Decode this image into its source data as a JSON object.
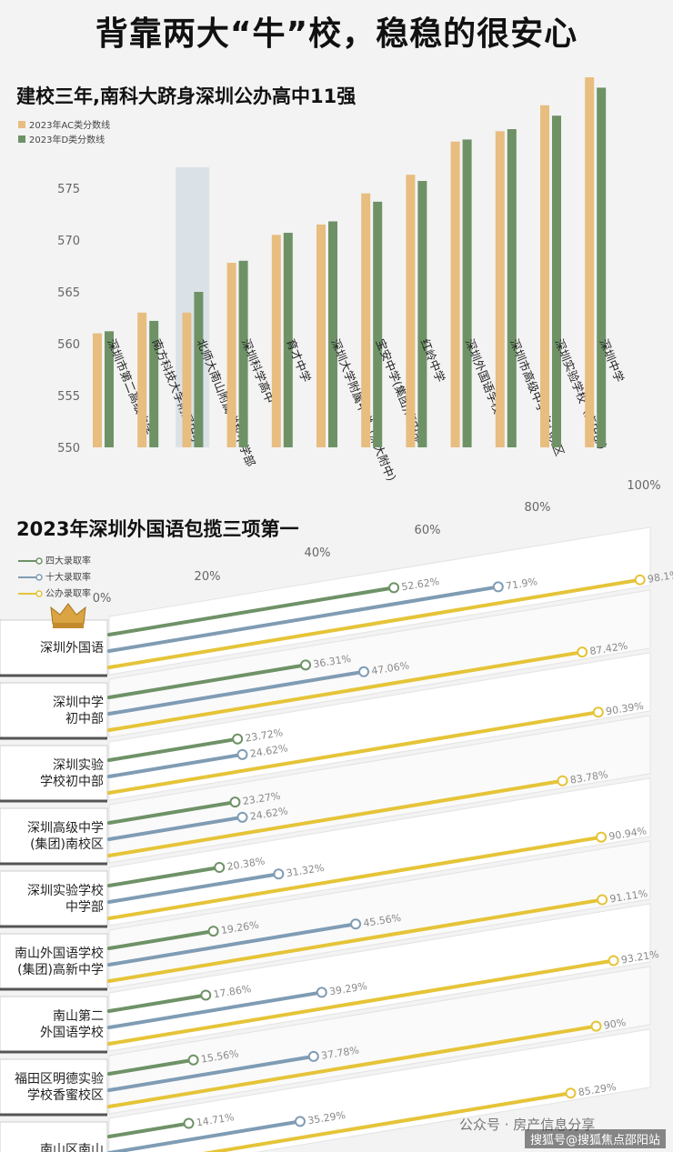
{
  "page": {
    "headline": "背靠两大“牛”校，稳稳的很安心",
    "watermark": "搜狐号@搜狐焦点邵阳站",
    "watermark2": "公众号 · 房产信息分享"
  },
  "colors": {
    "ac": "#e8bd80",
    "d": "#6e9266",
    "four": "#6e9266",
    "ten": "#7f9cb4",
    "pub": "#e5c438",
    "highlight": "#d5dde4"
  },
  "chart_data": [
    {
      "type": "bar",
      "title": "建校三年,南科大跻身深圳公办高中11强",
      "categories": [
        "深圳市第二高级中学",
        "南方科技大学附属中学",
        "北师大南山附属学校中学部",
        "深圳科学高中",
        "育才中学",
        "深圳大学附属中学（深大附中）",
        "宝安中学(集团)高中部",
        "红岭中学",
        "深圳外国语学校",
        "深圳市高级中学中心校区",
        "深圳实验学校（高中部）",
        "深圳中学"
      ],
      "series": [
        {
          "name": "2023年AC类分数线",
          "values": [
            561,
            563,
            563,
            567.8,
            570.5,
            571.5,
            574.5,
            576.3,
            579.5,
            580.5,
            583,
            585.7
          ]
        },
        {
          "name": "2023年D类分数线",
          "values": [
            561.2,
            562.2,
            565,
            568,
            570.7,
            571.8,
            573.7,
            575.7,
            579.7,
            580.7,
            582,
            584.7
          ]
        }
      ],
      "yticks": [
        550,
        555,
        560,
        565,
        570,
        575
      ],
      "ylim": [
        550,
        587
      ],
      "highlight": "南方科技大学附属中学",
      "legend": "top-left"
    },
    {
      "type": "line",
      "title": "2023年深圳外国语包揽三项第一",
      "xticks": [
        "0%",
        "20%",
        "40%",
        "60%",
        "80%",
        "100%"
      ],
      "series_names": [
        "四大录取率",
        "十大录取率",
        "公办录取率"
      ],
      "categories": [
        "深圳外国语",
        "深圳中学\n初中部",
        "深圳实验\n学校初中部",
        "深圳高级中学\n(集团)南校区",
        "深圳实验学校\n中学部",
        "南山外国语学校\n(集团)高新中学",
        "南山第二\n外国语学校",
        "福田区明德实验\n学校香蜜校区",
        "南山区南山"
      ],
      "four": [
        52.62,
        36.31,
        23.72,
        23.27,
        20.38,
        19.26,
        17.86,
        15.56,
        14.71
      ],
      "four_labels": [
        "52.62%",
        "36.31%",
        "23.72%",
        "23.27%",
        "20.38%",
        "19.26%",
        "17.86%",
        "15.56%",
        "14.71%"
      ],
      "ten": [
        71.9,
        47.06,
        24.62,
        24.62,
        31.32,
        45.56,
        39.29,
        37.78,
        35.29
      ],
      "ten_labels": [
        "71.9%",
        "47.06%",
        "24.62%",
        "24.62%",
        "31.32%",
        "45.56%",
        "39.29%",
        "37.78%",
        "35.29%"
      ],
      "pub": [
        98.1,
        87.42,
        90.39,
        83.78,
        90.94,
        91.11,
        93.21,
        90,
        85.29
      ],
      "pub_labels": [
        "98.1%",
        "87.42%",
        "90.39%",
        "83.78%",
        "90.94%",
        "91.11%",
        "93.21%",
        "90%",
        "85.29%"
      ],
      "legend": "top-left",
      "crown_on": "深圳外国语"
    }
  ]
}
